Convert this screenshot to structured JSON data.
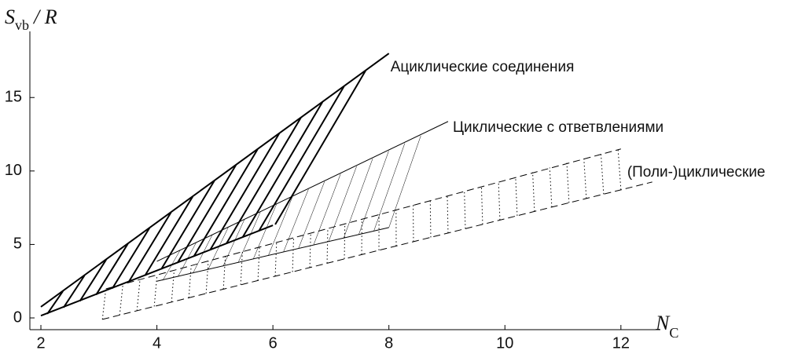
{
  "chart_data": {
    "type": "band",
    "xlim": [
      1.81,
      12.68
    ],
    "ylim": [
      -0.8,
      19.5
    ],
    "xticks": [
      2,
      4,
      6,
      8,
      10,
      12
    ],
    "yticks": [
      0,
      5,
      10,
      15
    ],
    "xlabel": {
      "main": "N",
      "sub": "C"
    },
    "ylabel": {
      "main": "S",
      "sub": "vb",
      "rest": "/ R"
    },
    "series": [
      {
        "name": "Ациклические соединения",
        "color": "#000000",
        "line": "solid",
        "width": 2,
        "hatch": "solid",
        "hatch_width": 2,
        "hatch_count": 15,
        "upper": {
          "x": [
            2,
            8
          ],
          "y": [
            0.75,
            18
          ]
        },
        "lower": {
          "x": [
            2,
            6
          ],
          "y": [
            0.15,
            6.3
          ]
        },
        "left": {
          "x": [
            2.11,
            2.38
          ],
          "y": [
            0.27,
            1.82
          ]
        },
        "right": {
          "x": [
            6.04,
            7.6
          ],
          "y": [
            6.36,
            16.84
          ]
        }
      },
      {
        "name": "Циклические с ответвлениями",
        "color": "#000000",
        "line": "solid",
        "width": 1,
        "hatch": "solid",
        "hatch_width": 0.5,
        "hatch_count": 16,
        "upper": {
          "x": [
            4,
            9.02
          ],
          "y": [
            3.85,
            13.37
          ]
        },
        "lower": {
          "x": [
            4,
            8
          ],
          "y": [
            2.5,
            6.15
          ]
        },
        "left": {
          "x": [
            4.1,
            4.4
          ],
          "y": [
            2.55,
            4.6
          ]
        },
        "right": {
          "x": [
            8,
            8.55
          ],
          "y": [
            6.15,
            12.4
          ]
        }
      },
      {
        "name": "(Поли-)циклические",
        "color": "#000000",
        "line": "dashed",
        "width": 1,
        "hatch": "dotted",
        "hatch_width": 1,
        "hatch_count": 31,
        "upper": {
          "x": [
            3.12,
            12
          ],
          "y": [
            1.98,
            11.5
          ]
        },
        "lower": {
          "x": [
            3.06,
            12.54
          ],
          "y": [
            -0.1,
            9.25
          ]
        },
        "left": {
          "x": [
            3.06,
            3.12
          ],
          "y": [
            -0.1,
            1.98
          ]
        },
        "right": {
          "x": [
            12,
            11.95
          ],
          "y": [
            8.72,
            11.5
          ]
        }
      }
    ]
  }
}
